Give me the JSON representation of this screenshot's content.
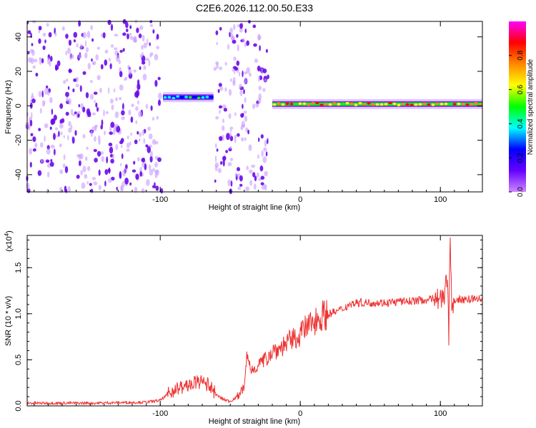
{
  "title": "C2E6.2026.112.00.50.E33",
  "chart_data": [
    {
      "type": "heatmap",
      "xlabel": "Height of straight line (km)",
      "ylabel": "Frequency (Hz)",
      "xlim": [
        -195,
        130
      ],
      "ylim": [
        -50,
        49
      ],
      "x_ticks": [
        "-100",
        "0",
        "100"
      ],
      "y_ticks": [
        "-40",
        "-20",
        "0",
        "20",
        "40"
      ],
      "colorbar": {
        "label": "Normalized spectral amplitude",
        "range": [
          0,
          1
        ],
        "ticks": [
          "0.0",
          "0.2",
          "0.4",
          "0.6",
          "0.8"
        ],
        "colors": [
          "#cc88ff",
          "#6600ff",
          "#0000ff",
          "#00ffff",
          "#00ff00",
          "#ffff00",
          "#ff8800",
          "#ff0000",
          "#ff00ff"
        ]
      },
      "regions": [
        {
          "x": [
            -195,
            -99
          ],
          "kind": "noise"
        },
        {
          "x": [
            -98,
            -62
          ],
          "kind": "signal",
          "freq": 5,
          "amp": 0.45
        },
        {
          "x": [
            -61,
            -23
          ],
          "kind": "noise"
        },
        {
          "x": [
            -20,
            130
          ],
          "kind": "signal",
          "freq": 1,
          "amp": 0.9
        }
      ]
    },
    {
      "type": "line",
      "xlabel": "Height of straight line (km)",
      "ylabel": "SNR (10 * v/v)",
      "y_multiplier": "(x10",
      "y_multiplier_exp": "4",
      "y_multiplier_close": ")",
      "xlim": [
        -195,
        130
      ],
      "ylim": [
        0,
        1.85
      ],
      "x_ticks": [
        "-100",
        "0",
        "100"
      ],
      "y_ticks": [
        "0.0",
        "0.5",
        "1.0",
        "1.5"
      ],
      "series": [
        {
          "color": "#ee3333",
          "x": [
            -195,
            -150,
            -110,
            -100,
            -95,
            -90,
            -85,
            -80,
            -75,
            -70,
            -65,
            -60,
            -55,
            -50,
            -45,
            -40,
            -38,
            -35,
            -30,
            -25,
            -20,
            -15,
            -10,
            -5,
            0,
            5,
            10,
            15,
            20,
            25,
            30,
            35,
            40,
            50,
            60,
            70,
            80,
            90,
            95,
            100,
            103,
            105,
            106,
            107,
            108,
            110,
            115,
            120,
            130
          ],
          "values": [
            0.03,
            0.03,
            0.04,
            0.06,
            0.12,
            0.18,
            0.2,
            0.22,
            0.25,
            0.26,
            0.22,
            0.12,
            0.07,
            0.05,
            0.1,
            0.2,
            0.55,
            0.38,
            0.45,
            0.5,
            0.6,
            0.62,
            0.68,
            0.72,
            0.78,
            0.86,
            0.92,
            0.98,
            1.0,
            1.02,
            1.05,
            1.1,
            1.12,
            1.12,
            1.12,
            1.13,
            1.14,
            1.15,
            1.16,
            1.17,
            1.2,
            1.45,
            0.75,
            1.85,
            1.1,
            1.15,
            1.15,
            1.16,
            1.16
          ]
        }
      ]
    }
  ]
}
